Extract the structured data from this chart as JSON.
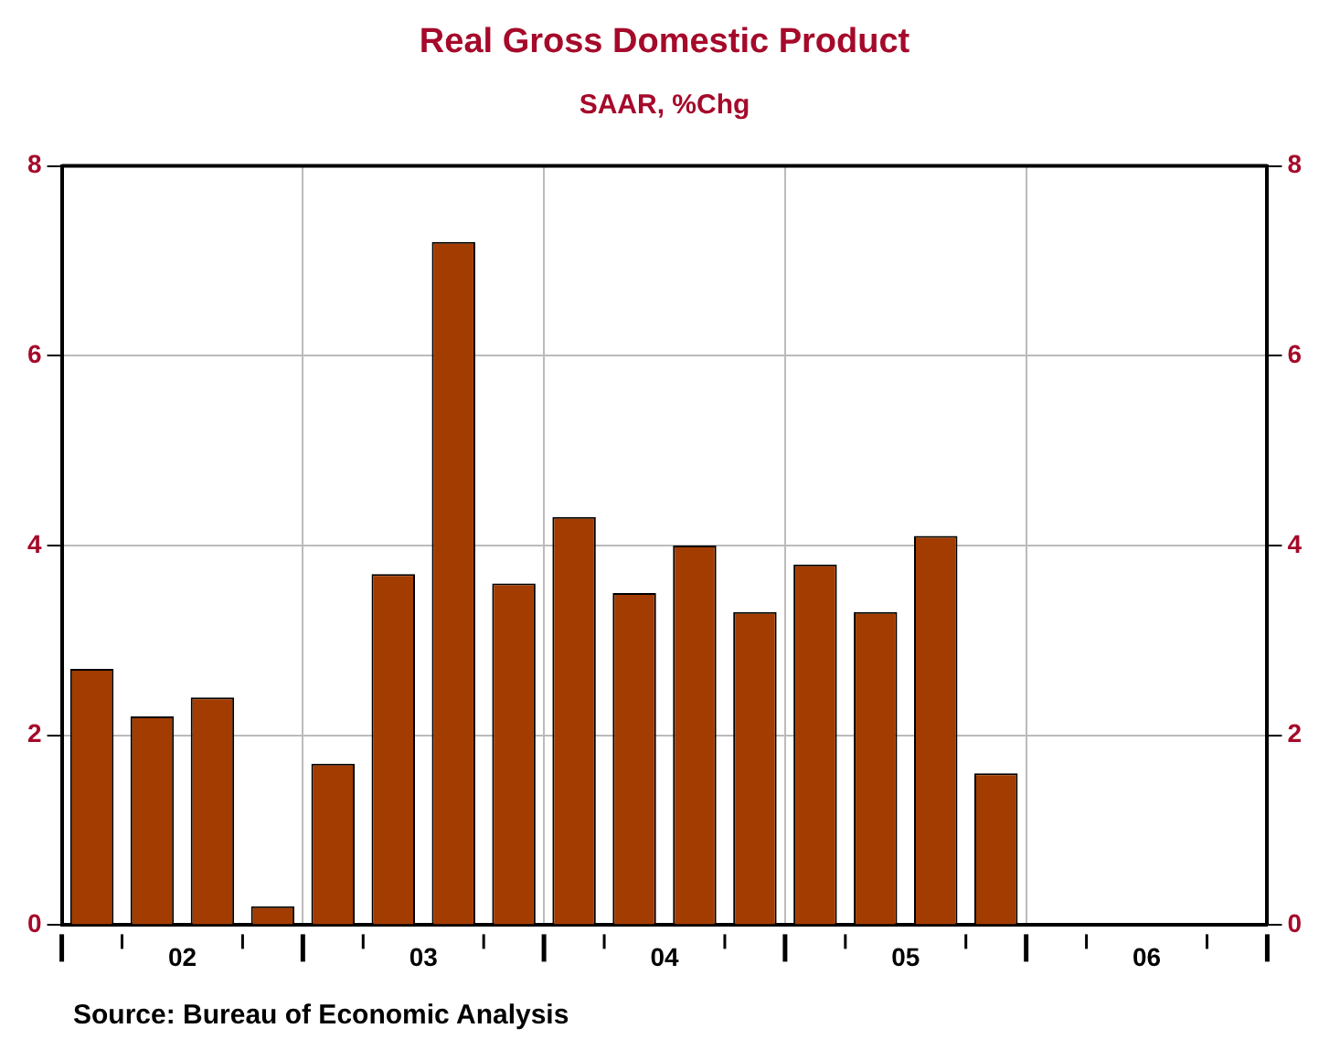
{
  "chart_data": {
    "type": "bar",
    "title": "Real Gross Domestic Product",
    "subtitle": "SAAR, %Chg",
    "categories": [
      null,
      "02",
      null,
      null,
      null,
      "03",
      null,
      null,
      null,
      "04",
      null,
      null,
      null,
      "05",
      null,
      null,
      null,
      "06",
      null,
      null
    ],
    "values": [
      2.7,
      2.2,
      2.4,
      0.2,
      1.7,
      3.7,
      7.2,
      3.6,
      4.3,
      3.5,
      4.0,
      3.3,
      3.8,
      3.3,
      4.1,
      1.6,
      null,
      null,
      null,
      null
    ],
    "color": "#a33c00",
    "ylim": [
      0,
      8
    ],
    "yticks": [
      0,
      2,
      4,
      6,
      8
    ],
    "y2lim": [
      0,
      8
    ],
    "y2ticks": [
      0,
      2,
      4,
      6,
      8
    ],
    "grid": true,
    "annotations": [
      "Source:  Bureau of Economic Analysis"
    ]
  }
}
